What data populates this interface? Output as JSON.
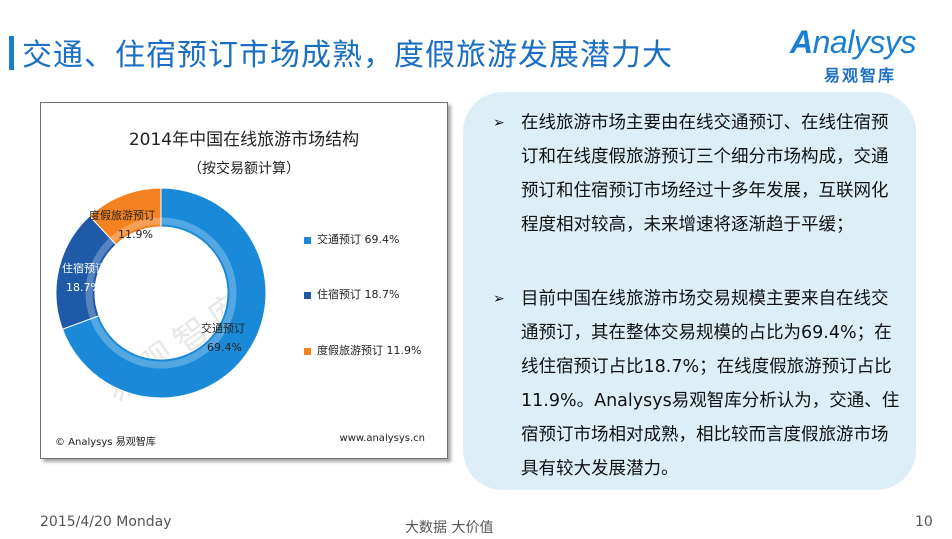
{
  "header": {
    "title": "交通、住宿预订市场成熟，度假旅游发展潜力大",
    "logo_text": "nalysys",
    "logo_initial": "A",
    "logo_subtitle": "易观智库"
  },
  "chart_panel": {
    "title": "2014年中国在线旅游市场结构",
    "subtitle": "（按交易额计算）",
    "watermark": "易观智库",
    "footer_left": "© Analysys 易观智库",
    "footer_right": "www.analysys.cn",
    "slice_labels": [
      {
        "name": "交通预订",
        "value": "69.4%"
      },
      {
        "name": "住宿预订",
        "value": "18.7%"
      },
      {
        "name": "度假旅游预订",
        "value": "11.9%"
      }
    ],
    "legend": [
      {
        "label": "交通预订 69.4%",
        "color": "#1a8ad8"
      },
      {
        "label": "住宿预订 18.7%",
        "color": "#1f5aa8"
      },
      {
        "label": "度假旅游预订 11.9%",
        "color": "#f58220"
      }
    ]
  },
  "chart_data": {
    "type": "pie",
    "title": "2014年中国在线旅游市场结构",
    "subtitle": "（按交易额计算）",
    "categories": [
      "交通预订",
      "住宿预订",
      "度假旅游预订"
    ],
    "values": [
      69.4,
      18.7,
      11.9
    ],
    "colors": [
      "#1a8ad8",
      "#1f5aa8",
      "#f58220"
    ],
    "unit": "%",
    "legend_position": "right"
  },
  "info_box": {
    "bullets": [
      {
        "text": "在线旅游市场主要由在线交通预订、在线住宿预订和在线度假旅游预订三个细分市场构成，交通预订和住宿预订市场经过十多年发展，互联网化程度相对较高，未来增速将逐渐趋于平缓；"
      },
      {
        "text": "目前中国在线旅游市场交易规模主要来自在线交通预订，其在整体交易规模的占比为69.4%；在线住宿预订占比18.7%；在线度假旅游预订占比11.9%。Analysys易观智库分析认为，交通、住宿预订市场相对成熟，相比较而言度假旅游市场具有较大发展潜力。"
      }
    ],
    "bullet_symbol": "➢"
  },
  "footer": {
    "date": "2015/4/20 Monday",
    "tagline": "大数据   大价值",
    "page_number": "10"
  }
}
